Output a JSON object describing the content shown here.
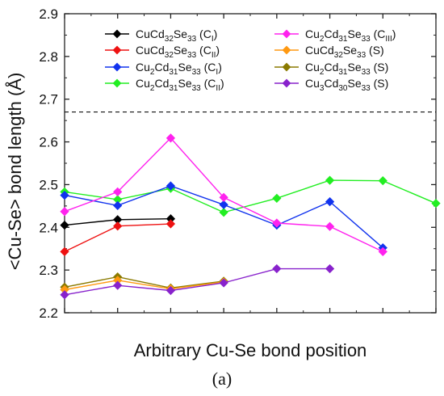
{
  "chart_data": {
    "type": "line",
    "xlabel": "Arbitrary Cu-Se bond position",
    "ylabel": "<Cu-Se> bond length (Å)",
    "ylim": [
      2.2,
      2.9
    ],
    "yticks": [
      "2.2",
      "2.3",
      "2.4",
      "2.5",
      "2.6",
      "2.7",
      "2.8",
      "2.9"
    ],
    "xlim": [
      0,
      7
    ],
    "reference_line": 2.67,
    "caption": "(a)",
    "legend_position": "top",
    "series": [
      {
        "name": "CuCd32Se33 (CI)",
        "base": "CuCd",
        "b1": "32",
        "mid": "Se",
        "b2": "33",
        "tail": " (C",
        "t": "I",
        "end": ")",
        "color": "#000000",
        "x": [
          0,
          1,
          2
        ],
        "y": [
          2.405,
          2.418,
          2.42
        ]
      },
      {
        "name": "CuCd32Se33 (CII)",
        "base": "CuCd",
        "b1": "32",
        "mid": "Se",
        "b2": "33",
        "tail": " (C",
        "t": "II",
        "end": ")",
        "color": "#ee1111",
        "x": [
          0,
          1,
          2
        ],
        "y": [
          2.343,
          2.403,
          2.408
        ]
      },
      {
        "name": "Cu2Cd31Se33 (CI)",
        "base": "Cu",
        "a1": "2",
        "base2": "Cd",
        "b1": "31",
        "mid": "Se",
        "b2": "33",
        "tail": " (C",
        "t": "I",
        "end": ")",
        "color": "#1133ee",
        "x": [
          0,
          1,
          2,
          3,
          4,
          5,
          6
        ],
        "y": [
          2.475,
          2.451,
          2.497,
          2.453,
          2.405,
          2.46,
          2.352
        ]
      },
      {
        "name": "Cu2Cd31Se33 (CII)",
        "base": "Cu",
        "a1": "2",
        "base2": "Cd",
        "b1": "31",
        "mid": "Se",
        "b2": "33",
        "tail": " (C",
        "t": "II",
        "end": ")",
        "color": "#22ee22",
        "x": [
          0,
          1,
          2,
          3,
          4,
          5,
          6,
          7
        ],
        "y": [
          2.483,
          2.465,
          2.491,
          2.435,
          2.468,
          2.51,
          2.509,
          2.456
        ]
      },
      {
        "name": "Cu2Cd31Se33 (CIII)",
        "base": "Cu",
        "a1": "2",
        "base2": "Cd",
        "b1": "31",
        "mid": "Se",
        "b2": "33",
        "tail": " (C",
        "t": "III",
        "end": ")",
        "color": "#ff22ee",
        "x": [
          0,
          1,
          2,
          3,
          4,
          5,
          6
        ],
        "y": [
          2.437,
          2.483,
          2.609,
          2.47,
          2.41,
          2.402,
          2.343
        ]
      },
      {
        "name": "CuCd32Se33 (S)",
        "base": "CuCd",
        "b1": "32",
        "mid": "Se",
        "b2": "33",
        "tail": " (S)",
        "color": "#ff9911",
        "x": [
          0,
          1,
          2,
          3
        ],
        "y": [
          2.254,
          2.276,
          2.256,
          2.272
        ]
      },
      {
        "name": "Cu2Cd31Se33 (S)",
        "base": "Cu",
        "a1": "2",
        "base2": "Cd",
        "b1": "31",
        "mid": "Se",
        "b2": "33",
        "tail": " (S)",
        "color": "#8a7a00",
        "x": [
          0,
          1,
          2,
          3
        ],
        "y": [
          2.26,
          2.284,
          2.258,
          2.274
        ]
      },
      {
        "name": "Cu3Cd30Se33 (S)",
        "base": "Cu",
        "a1": "3",
        "base2": "Cd",
        "b1": "30",
        "mid": "Se",
        "b2": "33",
        "tail": " (S)",
        "color": "#8822cc",
        "x": [
          0,
          1,
          2,
          3,
          4,
          5
        ],
        "y": [
          2.242,
          2.264,
          2.252,
          2.27,
          2.303,
          2.303
        ]
      }
    ]
  }
}
